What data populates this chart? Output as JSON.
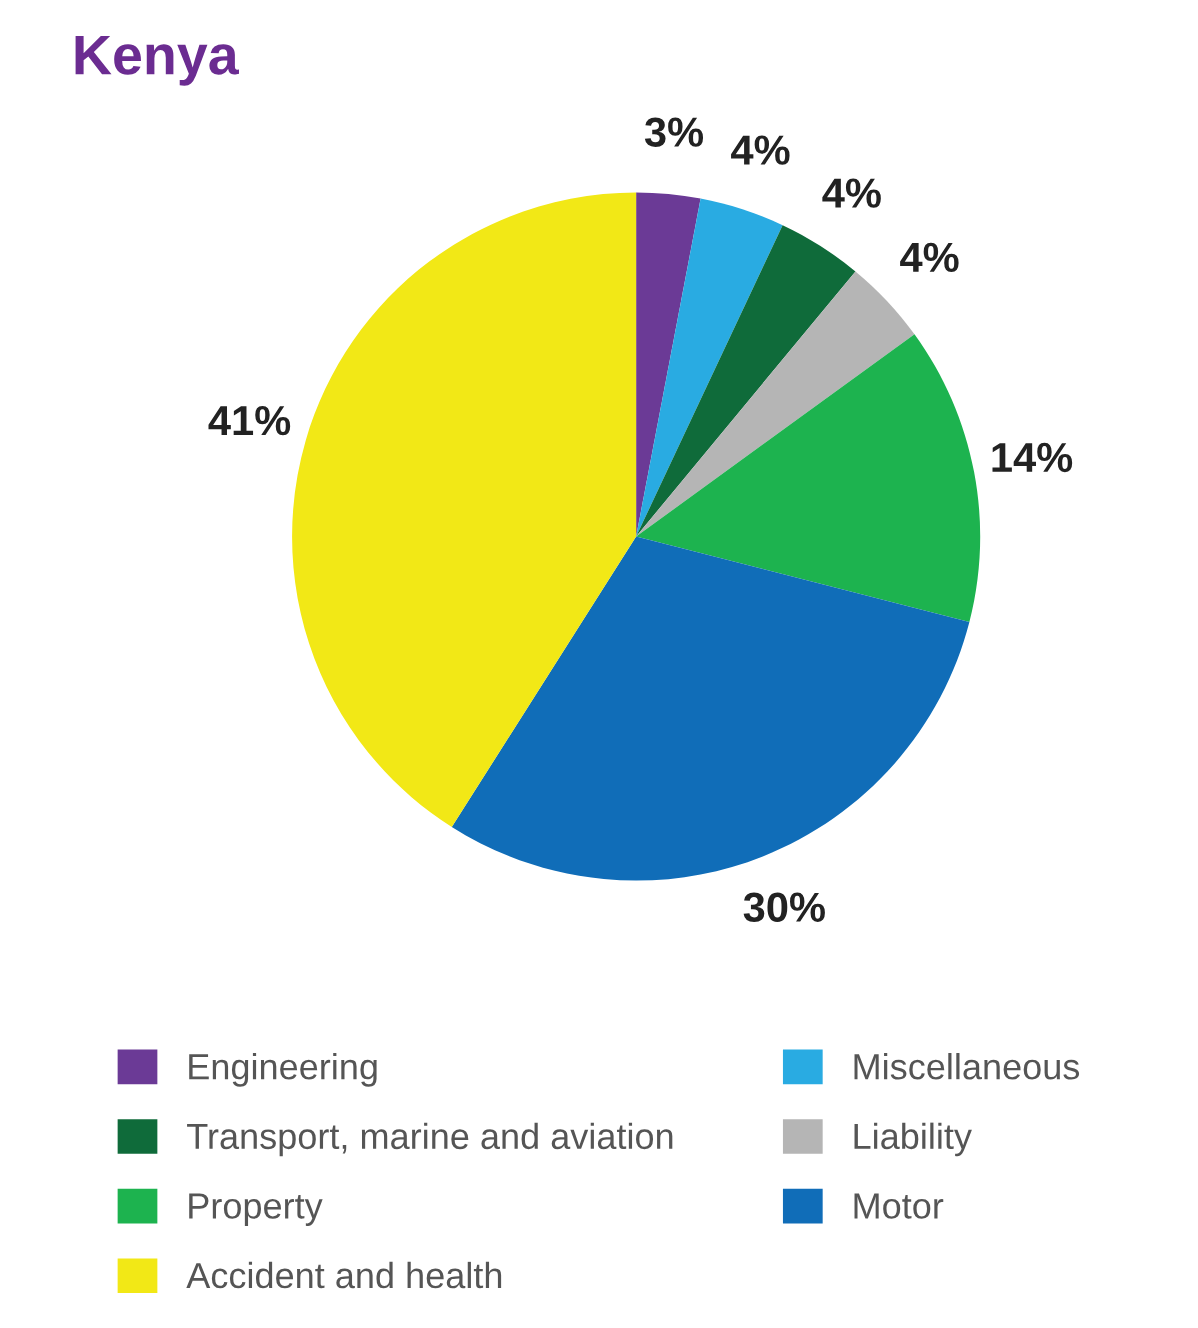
{
  "chart_data": {
    "type": "pie",
    "title": "Kenya",
    "categories": [
      "Engineering",
      "Miscellaneous",
      "Transport, marine and aviation",
      "Liability",
      "Property",
      "Motor",
      "Accident and health"
    ],
    "values": [
      3,
      4,
      4,
      4,
      14,
      30,
      41
    ],
    "value_labels": [
      "3%",
      "4%",
      "4%",
      "4%",
      "14%",
      "30%",
      "41%"
    ],
    "colors": [
      "#6b3a96",
      "#29abe2",
      "#0f6b3a",
      "#b5b5b5",
      "#1db34f",
      "#106db8",
      "#f2e816"
    ],
    "legend": "bottom"
  }
}
